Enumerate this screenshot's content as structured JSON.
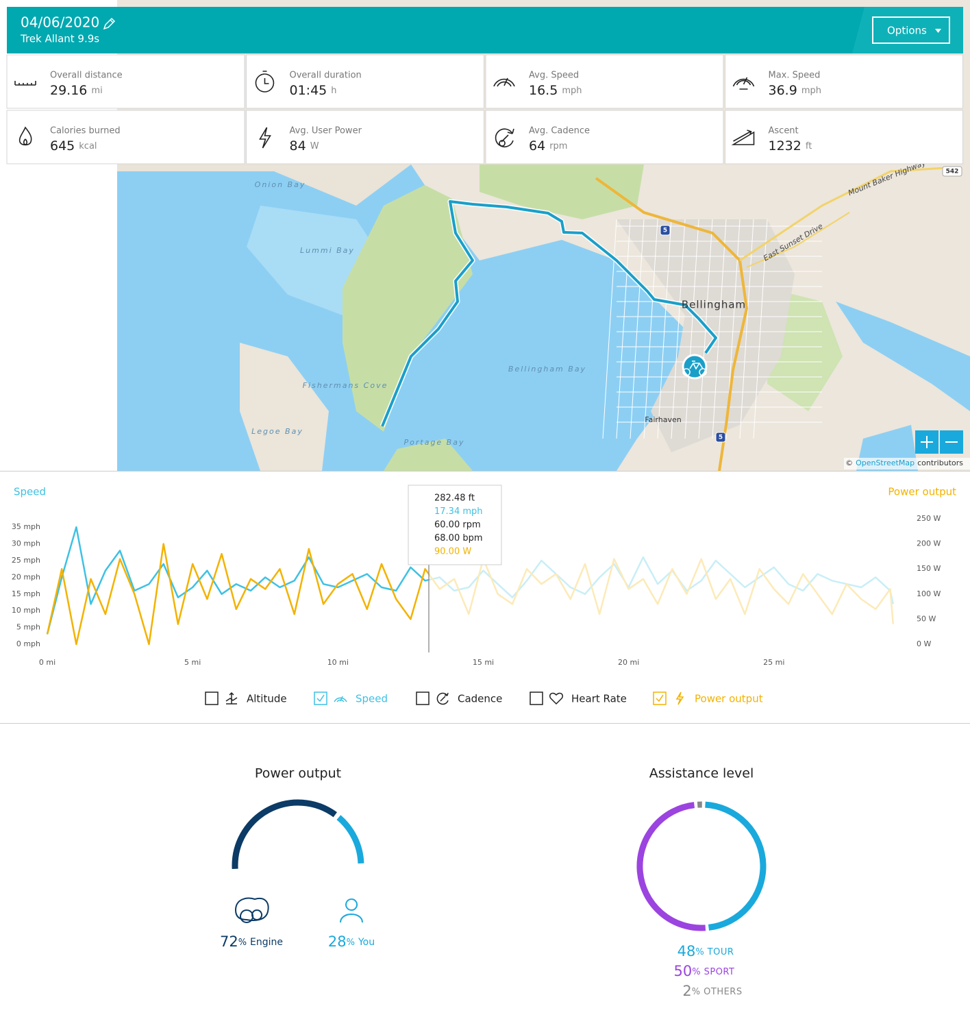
{
  "header": {
    "date": "04/06/2020",
    "bike": "Trek Allant 9.9s",
    "options": "Options"
  },
  "stats": [
    {
      "label": "Overall distance",
      "value": 29.16,
      "unit": "mi"
    },
    {
      "label": "Overall duration",
      "value": "01:45",
      "unit": "h"
    },
    {
      "label": "Avg. Speed",
      "value": 16.5,
      "unit": "mph"
    },
    {
      "label": "Max. Speed",
      "value": 36.9,
      "unit": "mph"
    },
    {
      "label": "Calories burned",
      "value": 645,
      "unit": "kcal"
    },
    {
      "label": "Avg. User Power",
      "value": 84,
      "unit": "W"
    },
    {
      "label": "Avg. Cadence",
      "value": 64,
      "unit": "rpm"
    },
    {
      "label": "Ascent",
      "value": 1232,
      "unit": "ft"
    }
  ],
  "map": {
    "labels": [
      "Onion Bay",
      "Lummi Bay",
      "Bellingham",
      "Bellingham Bay",
      "Fishermans Cove",
      "Legoe Bay",
      "Portage Bay",
      "Fairhaven",
      "Mount Baker Highway",
      "East Sunset Drive",
      "542",
      "5",
      "5"
    ],
    "attribution": [
      "©",
      "OpenStreetMap",
      "contributors"
    ]
  },
  "chart_data": {
    "type": "line",
    "x": [
      0,
      0.5,
      1,
      1.5,
      2,
      2.5,
      3,
      3.5,
      4,
      4.5,
      5,
      5.5,
      6,
      6.5,
      7,
      7.5,
      8,
      8.5,
      9,
      9.5,
      10,
      10.5,
      11,
      11.5,
      12,
      12.5,
      13,
      13.5,
      14,
      14.5,
      15,
      15.5,
      16,
      16.5,
      17,
      17.5,
      18,
      18.5,
      19,
      19.5,
      20,
      20.5,
      21,
      21.5,
      22,
      22.5,
      23,
      23.5,
      24,
      24.5,
      25,
      25.5,
      26,
      26.5,
      27,
      27.5,
      28,
      28.5,
      29,
      29.1
    ],
    "xlim": [
      0,
      29.6
    ],
    "xticks": [
      {
        "value": 0,
        "label": "0 mi"
      },
      {
        "value": 5,
        "label": "5 mi"
      },
      {
        "value": 10,
        "label": "10 mi"
      },
      {
        "value": 15,
        "label": "15 mi"
      },
      {
        "value": 20,
        "label": "20 mi"
      },
      {
        "value": 25,
        "label": "25 mi"
      }
    ],
    "ylim": [
      0,
      37.5
    ],
    "yticks": [
      {
        "value": 0,
        "label": "0 mph"
      },
      {
        "value": 5,
        "label": "5 mph"
      },
      {
        "value": 10,
        "label": "10 mph"
      },
      {
        "value": 15,
        "label": "15 mph"
      },
      {
        "value": 20,
        "label": "20 mph"
      },
      {
        "value": 25,
        "label": "25 mph"
      },
      {
        "value": 30,
        "label": "30 mph"
      },
      {
        "value": 35,
        "label": "35 mph"
      }
    ],
    "y2lim": [
      0,
      250
    ],
    "y2ticks": [
      {
        "value": 0,
        "label": "0 W"
      },
      {
        "value": 50,
        "label": "50 W"
      },
      {
        "value": 100,
        "label": "100 W"
      },
      {
        "value": 150,
        "label": "150 W"
      },
      {
        "value": 200,
        "label": "200 W"
      },
      {
        "value": 250,
        "label": "250 W"
      }
    ],
    "series": [
      {
        "name": "Speed",
        "color": "#3ec1e3",
        "values": [
          3,
          20,
          35,
          12,
          22,
          28,
          16,
          18,
          24,
          14,
          17,
          22,
          15,
          18,
          16,
          20,
          17,
          19,
          26,
          18,
          17,
          19,
          21,
          17,
          16,
          23,
          19,
          20,
          16,
          17,
          22,
          18,
          14,
          19,
          25,
          21,
          17,
          15,
          20,
          24,
          17,
          26,
          18,
          22,
          16,
          19,
          25,
          21,
          17,
          20,
          23,
          18,
          16,
          21,
          19,
          18,
          17,
          20,
          16,
          12
        ]
      },
      {
        "name": "Power output",
        "color": "#f3b200",
        "axis": "y2",
        "values": [
          20,
          150,
          0,
          130,
          60,
          170,
          100,
          0,
          200,
          40,
          160,
          90,
          180,
          70,
          130,
          110,
          150,
          60,
          190,
          80,
          120,
          140,
          70,
          160,
          90,
          50,
          150,
          110,
          130,
          60,
          170,
          100,
          80,
          150,
          120,
          140,
          90,
          160,
          60,
          170,
          110,
          130,
          80,
          150,
          100,
          170,
          90,
          130,
          60,
          150,
          110,
          80,
          140,
          100,
          60,
          120,
          90,
          70,
          110,
          40
        ]
      }
    ],
    "tooltip": [
      {
        "text": "282.48 ft",
        "color": "#222222"
      },
      {
        "text": "17.34 mph",
        "color": "#3ec1e3"
      },
      {
        "text": "60.00 rpm",
        "color": "#222222"
      },
      {
        "text": "68.00 bpm",
        "color": "#222222"
      },
      {
        "text": "90.00 W",
        "color": "#f3b200"
      }
    ]
  },
  "toggles": [
    {
      "label": "Altitude",
      "checked": false,
      "color": "#222222"
    },
    {
      "label": "Speed",
      "checked": true,
      "color": "#3ec1e3"
    },
    {
      "label": "Cadence",
      "checked": false,
      "color": "#222222"
    },
    {
      "label": "Heart Rate",
      "checked": false,
      "color": "#222222"
    },
    {
      "label": "Power output",
      "checked": true,
      "color": "#f3b200"
    }
  ],
  "power_output": {
    "title": "Power output",
    "items": [
      {
        "value": 72,
        "unit": "%",
        "label": "Engine",
        "color": "#0b3b66"
      },
      {
        "value": 28,
        "unit": "%",
        "label": "You",
        "color": "#1aa9dc"
      }
    ]
  },
  "assistance": {
    "title": "Assistance level",
    "items": [
      {
        "value": 48,
        "unit": "%",
        "label": "TOUR",
        "color": "#1aa9dc"
      },
      {
        "value": 50,
        "unit": "%",
        "label": "SPORT",
        "color": "#9b44e0"
      },
      {
        "value": 2,
        "unit": "%",
        "label": "OTHERS",
        "color": "#888888"
      }
    ]
  }
}
